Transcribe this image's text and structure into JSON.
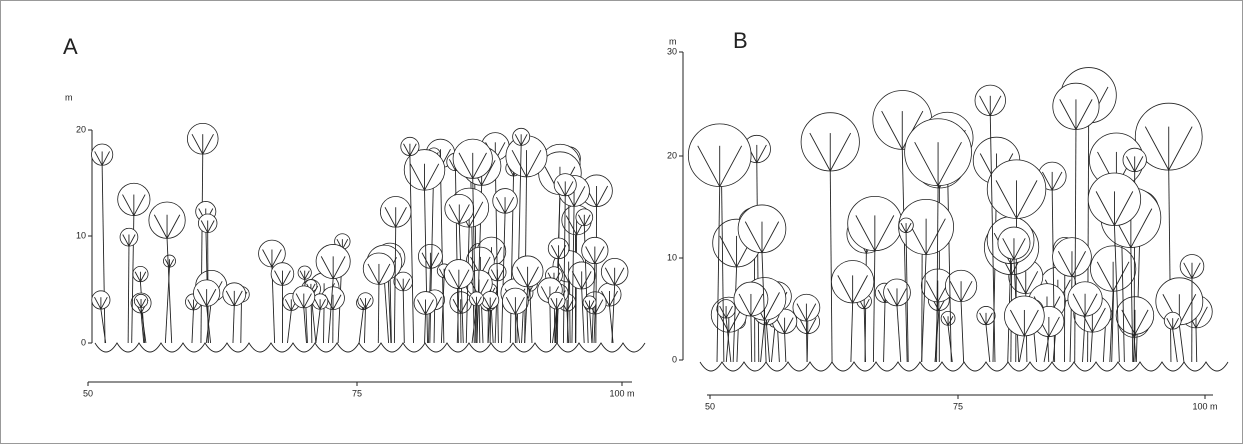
{
  "panels": [
    {
      "label": "A",
      "y_unit": "m",
      "y_ticks": [
        "20",
        "10",
        "0"
      ],
      "x_ticks": [
        "50",
        "75",
        "100 m"
      ]
    },
    {
      "label": "B",
      "y_unit": "m",
      "y_ticks": [
        "30",
        "20",
        "10",
        "0"
      ],
      "x_ticks": [
        "50",
        "75",
        "100 m"
      ]
    }
  ]
}
